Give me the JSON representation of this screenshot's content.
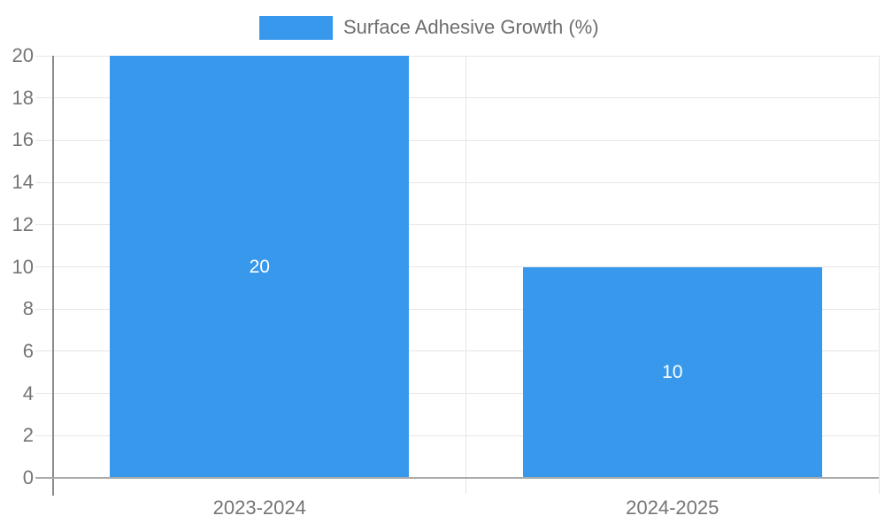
{
  "chart_data": {
    "type": "bar",
    "title": "",
    "categories": [
      "2023-2024",
      "2024-2025"
    ],
    "series": [
      {
        "name": "Surface Adhesive Growth (%)",
        "values": [
          20,
          10
        ]
      }
    ],
    "data_labels": [
      "20",
      "10"
    ],
    "ylim": [
      0,
      20
    ],
    "yticks": [
      0,
      2,
      4,
      6,
      8,
      10,
      12,
      14,
      16,
      18,
      20
    ],
    "xlabel": "",
    "ylabel": "",
    "grid": true,
    "legend_position": "top-center",
    "colors": {
      "bar": "#3899EC",
      "grid_line": "#E6E6E6",
      "axis_line": "#8C8C8C",
      "zero_line": "#AAAAAA",
      "axis_label": "#757575",
      "legend_text": "#6E6E6E",
      "bar_label": "#FFFFFF",
      "background": "#FFFFFF"
    }
  }
}
